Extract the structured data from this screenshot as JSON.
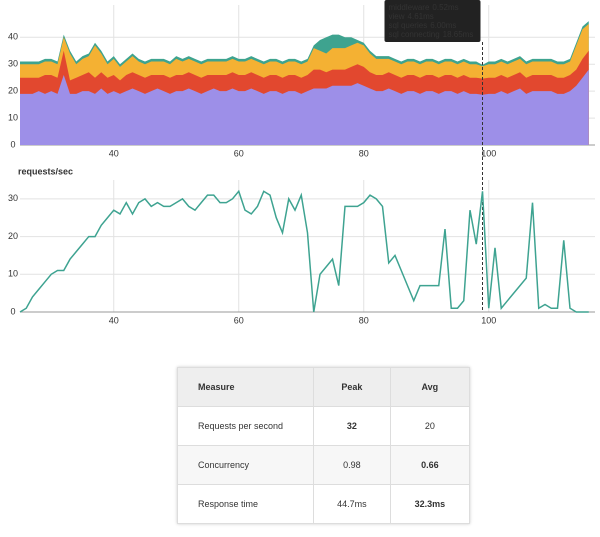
{
  "chart_data": [
    {
      "type": "stacked_area",
      "x": [
        25,
        26,
        27,
        28,
        29,
        30,
        31,
        32,
        33,
        34,
        35,
        36,
        37,
        38,
        39,
        40,
        41,
        42,
        43,
        44,
        45,
        46,
        47,
        48,
        49,
        50,
        51,
        52,
        53,
        54,
        55,
        56,
        57,
        58,
        59,
        60,
        61,
        62,
        63,
        64,
        65,
        66,
        67,
        68,
        69,
        70,
        71,
        72,
        73,
        74,
        75,
        76,
        77,
        78,
        79,
        80,
        81,
        82,
        83,
        84,
        85,
        86,
        87,
        88,
        89,
        90,
        91,
        92,
        93,
        94,
        95,
        96,
        97,
        98,
        99,
        100,
        101,
        102,
        103,
        104,
        105,
        106,
        107,
        108,
        109,
        110,
        111,
        112,
        113,
        114,
        115,
        116
      ],
      "series": [
        {
          "name": "sql connecting",
          "color": "#9d8fe8",
          "values": [
            19,
            19,
            19,
            20,
            19,
            20,
            19,
            26,
            19,
            19,
            20,
            20,
            19,
            21,
            19,
            20,
            19,
            20,
            21,
            20,
            19,
            20,
            21,
            20,
            19,
            20,
            20,
            21,
            20,
            19,
            20,
            21,
            20,
            20,
            21,
            20,
            20,
            21,
            20,
            19,
            20,
            20,
            19,
            20,
            20,
            19,
            20,
            21,
            21,
            21,
            22,
            22,
            22,
            22,
            23,
            22,
            21,
            20,
            20,
            21,
            20,
            19,
            20,
            20,
            19,
            20,
            20,
            19,
            20,
            20,
            19,
            20,
            19,
            19,
            18.65,
            19,
            19,
            20,
            19,
            20,
            21,
            19,
            20,
            20,
            20,
            20,
            19,
            19,
            20,
            22,
            25,
            28
          ]
        },
        {
          "name": "sql queries",
          "color": "#e2482f",
          "values": [
            6,
            6,
            6,
            5,
            7,
            6,
            6,
            9,
            5,
            6,
            6,
            7,
            6,
            6,
            6,
            6,
            5,
            6,
            6,
            6,
            6,
            6,
            5,
            6,
            6,
            6,
            6,
            6,
            6,
            6,
            6,
            5,
            6,
            6,
            6,
            6,
            6,
            6,
            6,
            6,
            6,
            6,
            6,
            6,
            6,
            6,
            6,
            7,
            7,
            6,
            6,
            6,
            6,
            7,
            7,
            7,
            6,
            6,
            6,
            6,
            6,
            6,
            6,
            6,
            6,
            6,
            6,
            6,
            6,
            6,
            6,
            6,
            6,
            6,
            6,
            6,
            6,
            6,
            6,
            6,
            6,
            6,
            6,
            6,
            6,
            6,
            6,
            6,
            6,
            6,
            7,
            7
          ]
        },
        {
          "name": "view",
          "color": "#f4b133",
          "values": [
            5,
            5,
            5,
            5,
            5,
            5,
            5,
            5,
            10,
            5,
            6,
            6,
            12,
            7,
            5,
            6,
            5,
            5,
            6,
            5,
            5,
            5,
            5,
            5,
            5,
            6,
            5,
            5,
            5,
            5,
            5,
            5,
            5,
            5,
            5,
            5,
            5,
            5,
            5,
            5,
            5,
            5,
            5,
            5,
            5,
            5,
            5,
            8,
            7,
            7,
            8,
            8,
            8,
            8,
            8,
            8,
            7,
            6,
            6,
            5,
            5,
            5,
            5,
            5,
            5,
            5,
            5,
            5,
            5,
            5,
            5,
            5,
            5,
            5,
            4.61,
            5,
            5,
            5,
            5,
            5,
            5,
            5,
            5,
            5,
            5,
            5,
            5,
            5,
            5,
            9,
            11,
            10
          ]
        },
        {
          "name": "middleware",
          "color": "#3ea38f",
          "values": [
            1,
            1,
            1,
            1,
            1,
            1,
            1,
            1,
            1,
            1,
            1,
            1,
            1,
            1,
            1,
            1,
            1,
            1,
            1,
            1,
            1,
            1,
            1,
            1,
            1,
            1,
            1,
            1,
            1,
            1,
            1,
            1,
            1,
            1,
            1,
            1,
            1,
            1,
            1,
            1,
            1,
            1,
            1,
            1,
            1,
            1,
            1,
            1,
            4,
            6,
            5,
            5,
            4,
            3,
            1,
            1,
            1,
            1,
            1,
            1,
            1,
            1,
            1,
            1,
            1,
            1,
            1,
            1,
            1,
            1,
            1,
            1,
            1,
            1,
            0.52,
            1,
            1,
            1,
            1,
            1,
            1,
            1,
            1,
            1,
            1,
            1,
            1,
            1,
            1,
            1,
            1,
            1
          ]
        }
      ],
      "xlim": [
        25,
        117
      ],
      "ylim": [
        0,
        52
      ],
      "xticks": [
        40,
        60,
        80,
        100
      ],
      "yticks": [
        0,
        10,
        20,
        30,
        40
      ],
      "grid": true,
      "tooltip": {
        "x": 99,
        "labels": [
          "0.52ms",
          "4.61ms",
          "6.00ms",
          "18.65ms"
        ]
      }
    },
    {
      "type": "line",
      "title": "requests/sec",
      "x": [
        25,
        26,
        27,
        28,
        29,
        30,
        31,
        32,
        33,
        34,
        35,
        36,
        37,
        38,
        39,
        40,
        41,
        42,
        43,
        44,
        45,
        46,
        47,
        48,
        49,
        50,
        51,
        52,
        53,
        54,
        55,
        56,
        57,
        58,
        59,
        60,
        61,
        62,
        63,
        64,
        65,
        66,
        67,
        68,
        69,
        70,
        71,
        72,
        73,
        74,
        75,
        76,
        77,
        78,
        79,
        80,
        81,
        82,
        83,
        84,
        85,
        86,
        87,
        88,
        89,
        90,
        91,
        92,
        93,
        94,
        95,
        96,
        97,
        98,
        99,
        100,
        101,
        102,
        103,
        104,
        105,
        106,
        107,
        108,
        109,
        110,
        111,
        112,
        113,
        114,
        115,
        116
      ],
      "series": [
        {
          "color": "#3ea391",
          "values": [
            0,
            1,
            4,
            6,
            8,
            10,
            11,
            11,
            14,
            16,
            18,
            20,
            20,
            23,
            25,
            27,
            26,
            29,
            26,
            29,
            30,
            28,
            29,
            28,
            28,
            29,
            30,
            28,
            27,
            29,
            31,
            31,
            29,
            29,
            30,
            32,
            27,
            26,
            28,
            32,
            31,
            25,
            21,
            30,
            27,
            31,
            21,
            0,
            10,
            12,
            14,
            7,
            28,
            28,
            28,
            29,
            31,
            30,
            28,
            13,
            15,
            11,
            7,
            3,
            7,
            7,
            7,
            7,
            22,
            1,
            1,
            3,
            27,
            18,
            32,
            1,
            17,
            1,
            3,
            5,
            7,
            9,
            29,
            1,
            2,
            1,
            1,
            19,
            1,
            0,
            0,
            0
          ]
        }
      ],
      "xlim": [
        25,
        117
      ],
      "ylim": [
        0,
        35
      ],
      "xticks": [
        40,
        60,
        80,
        100
      ],
      "yticks": [
        0,
        10,
        20,
        30
      ],
      "grid": true
    }
  ],
  "table": {
    "columns": [
      "Measure",
      "Peak",
      "Avg"
    ],
    "rows": [
      [
        "Requests per second",
        "32",
        "20"
      ],
      [
        "Concurrency",
        "0.98",
        "0.66"
      ],
      [
        "Response time",
        "44.7ms",
        "32.3ms"
      ]
    ]
  }
}
